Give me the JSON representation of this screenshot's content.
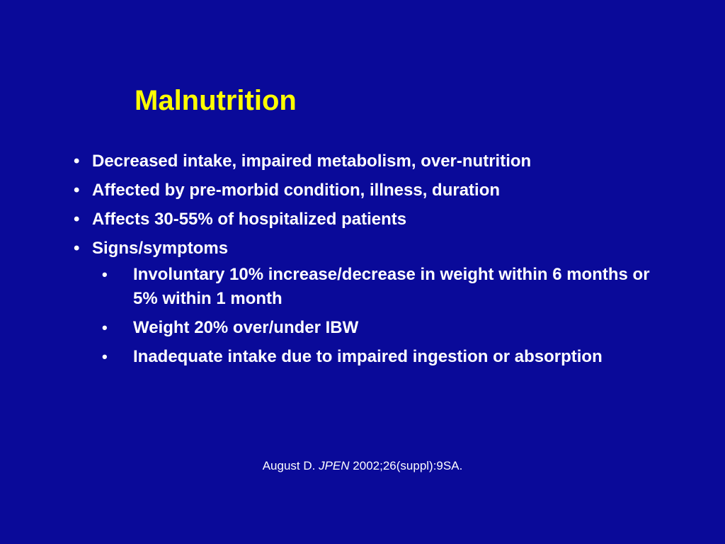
{
  "slide": {
    "title": "Malnutrition",
    "bullets": [
      "Decreased intake, impaired metabolism, over-nutrition",
      "Affected by pre-morbid condition, illness, duration",
      "Affects 30-55% of hospitalized patients",
      "Signs/symptoms"
    ],
    "sub_bullets": [
      "Involuntary 10% increase/decrease in weight within 6 months or 5% within 1 month",
      "Weight 20% over/under IBW",
      "Inadequate intake due to impaired ingestion or absorption"
    ],
    "bullet_symbol": "•",
    "citation": {
      "author": "August D.",
      "journal": "JPEN",
      "details": "2002;26(suppl):9SA."
    }
  },
  "colors": {
    "background": "#0a0a99",
    "title": "#ffff00",
    "text": "#ffffff"
  }
}
